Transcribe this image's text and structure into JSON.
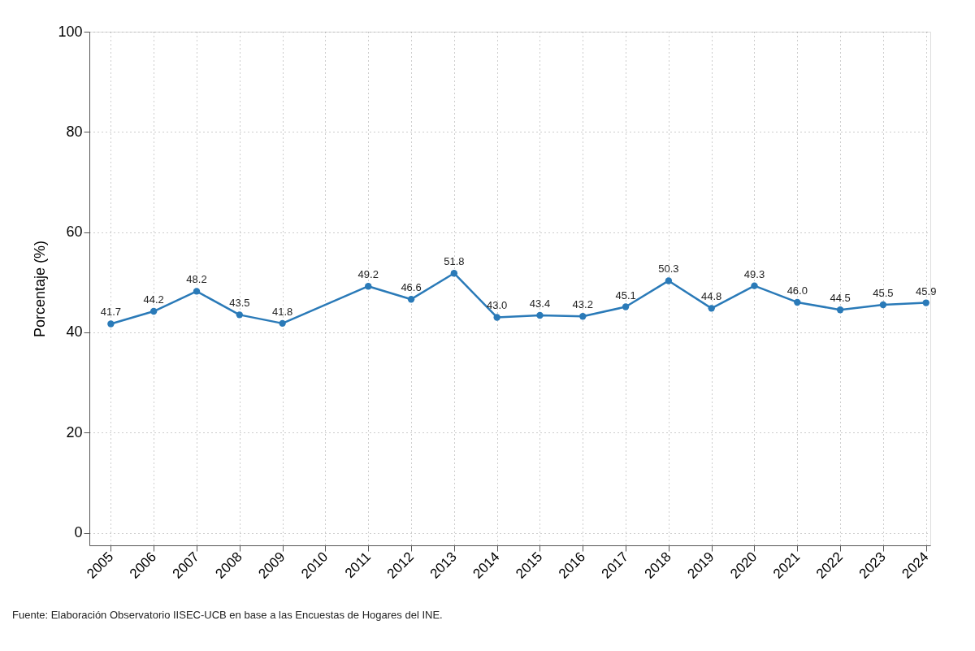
{
  "chart_data": {
    "type": "line",
    "ylabel": "Porcentaje (%)",
    "x": [
      2005,
      2006,
      2007,
      2008,
      2009,
      2011,
      2012,
      2013,
      2014,
      2015,
      2016,
      2017,
      2018,
      2019,
      2020,
      2021,
      2022,
      2023,
      2024
    ],
    "series": [
      {
        "color": "#2a7ab8",
        "values": [
          41.7,
          44.2,
          48.2,
          43.5,
          41.8,
          49.2,
          46.6,
          51.8,
          43.0,
          43.4,
          43.2,
          45.1,
          50.3,
          44.8,
          49.3,
          46.0,
          44.5,
          45.5,
          45.9
        ]
      }
    ],
    "xlim": [
      2004.5,
      2024.1
    ],
    "xticks": [
      2005,
      2006,
      2007,
      2008,
      2009,
      2010,
      2011,
      2012,
      2013,
      2014,
      2015,
      2016,
      2017,
      2018,
      2019,
      2020,
      2021,
      2022,
      2023,
      2024
    ],
    "ylim": [
      -2.5,
      100
    ],
    "yticks": [
      0,
      20,
      40,
      60,
      80,
      100
    ],
    "value_labels": [
      "41.7",
      "44.2",
      "48.2",
      "43.5",
      "41.8",
      "49.2",
      "46.6",
      "51.8",
      "43.0",
      "43.4",
      "43.2",
      "45.1",
      "50.3",
      "44.8",
      "49.3",
      "46.0",
      "44.5",
      "45.5",
      "45.9"
    ],
    "grid": true,
    "marker": "circle",
    "line_style": "solid",
    "annotations": [
      "Fuente: Elaboración Observatorio IISEC-UCB en base a las Encuestas de Hogares del INE."
    ]
  }
}
